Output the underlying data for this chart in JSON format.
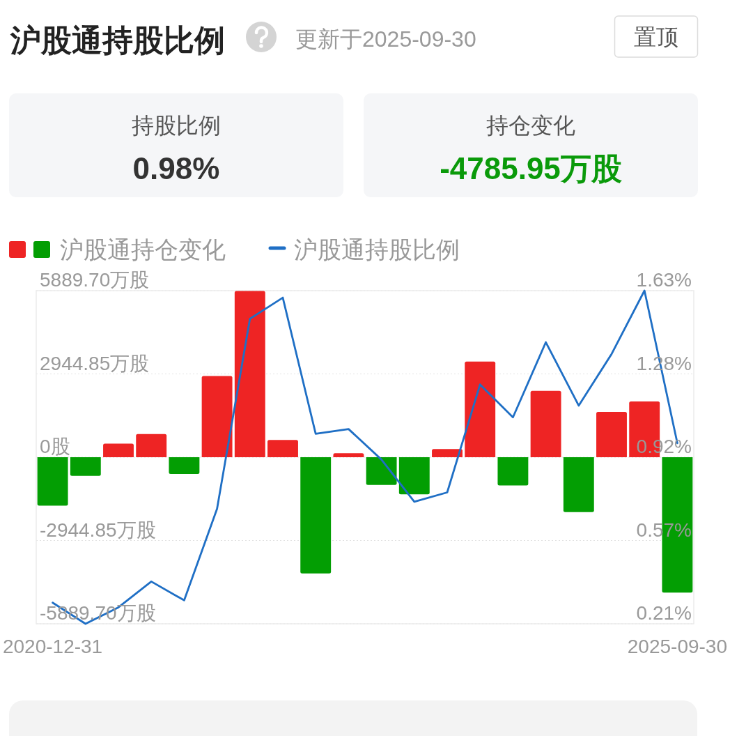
{
  "chart_data": {
    "type": "bar",
    "title": "沪股通持股比例",
    "subtitle": "更新于2025-09-30",
    "annotations": [
      "置顶",
      "持股比例",
      "0.98%",
      "持仓变化",
      "-4785.95万股"
    ],
    "categories": [
      "2020-12-31",
      null,
      null,
      null,
      null,
      null,
      null,
      null,
      null,
      null,
      null,
      null,
      null,
      null,
      null,
      null,
      null,
      null,
      null,
      "2025-09-30"
    ],
    "series": [
      {
        "name": "沪股通持仓变化",
        "values": [
          -1710,
          -660,
          480,
          820,
          -590,
          2870,
          5880,
          610,
          -4110,
          140,
          -980,
          -1310,
          290,
          3380,
          -1000,
          2350,
          -1940,
          1600,
          1970,
          -4790
        ],
        "colors": [
          "#039e03",
          "#039e03",
          "#ee2424",
          "#ee2424",
          "#039e03",
          "#ee2424",
          "#ee2424",
          "#ee2424",
          "#039e03",
          "#ee2424",
          "#039e03",
          "#039e03",
          "#ee2424",
          "#ee2424",
          "#039e03",
          "#ee2424",
          "#039e03",
          "#ee2424",
          "#ee2424",
          "#039e03"
        ]
      },
      {
        "name": "沪股通持股比例",
        "type": "line",
        "axis": "y2",
        "color": "#1f6fc5",
        "values": [
          0.3,
          0.21,
          0.28,
          0.39,
          0.31,
          0.7,
          1.51,
          1.6,
          1.02,
          1.04,
          0.91,
          0.73,
          0.77,
          1.23,
          1.09,
          1.41,
          1.14,
          1.36,
          1.63,
          0.98
        ]
      }
    ],
    "ylim": [
      -5889.7,
      5889.7
    ],
    "yticks": [
      {
        "value": 5889.7,
        "label": "5889.70万股"
      },
      {
        "value": 2944.85,
        "label": "2944.85万股"
      },
      {
        "value": 0,
        "label": "0股"
      },
      {
        "value": -2944.85,
        "label": "-2944.85万股"
      },
      {
        "value": -5889.7,
        "label": "-5889.70万股"
      }
    ],
    "y2lim": [
      0.21,
      1.63
    ],
    "y2ticks": [
      {
        "value": 1.63,
        "label": "1.63%"
      },
      {
        "value": 1.275,
        "label": "1.28%"
      },
      {
        "value": 0.92,
        "label": "0.92%"
      },
      {
        "value": 0.565,
        "label": "0.57%"
      },
      {
        "value": 0.21,
        "label": "0.21%"
      }
    ],
    "grid": "y",
    "legend": "top left"
  }
}
